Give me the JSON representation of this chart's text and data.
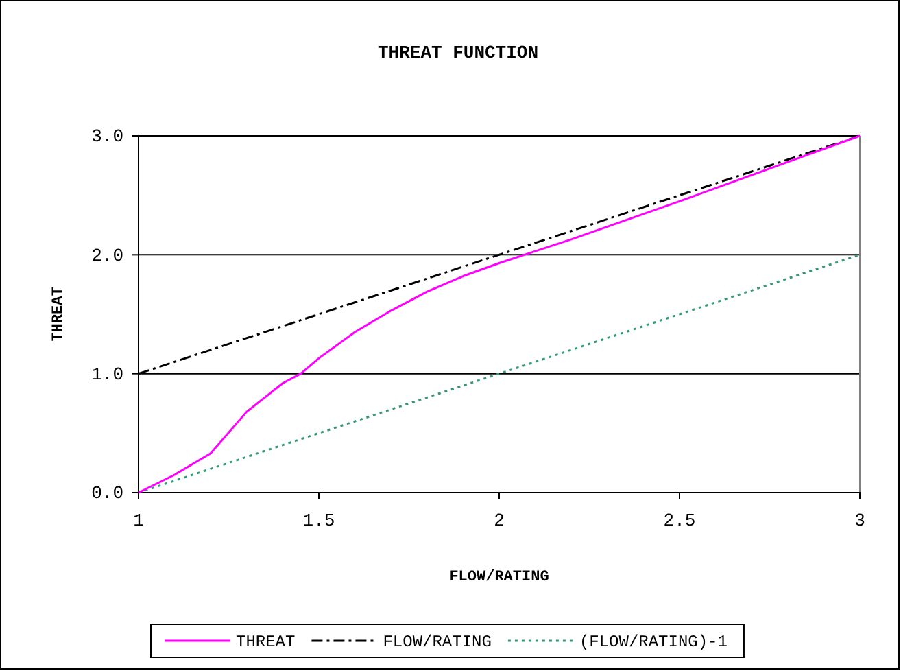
{
  "chart_data": {
    "type": "line",
    "title": "THREAT FUNCTION",
    "xlabel": "FLOW/RATING",
    "ylabel": "THREAT",
    "xlim": [
      1,
      3
    ],
    "xticks": [
      1,
      1.5,
      2,
      2.5,
      3
    ],
    "ylim": [
      0,
      3
    ],
    "yticks": [
      {
        "value": 0,
        "label": "0.0"
      },
      {
        "value": 1,
        "label": "1.0"
      },
      {
        "value": 2,
        "label": "2.0"
      },
      {
        "value": 3,
        "label": "3.0"
      }
    ],
    "grid": "y",
    "legend": "bottom",
    "marker": "none",
    "series": [
      {
        "name": "THREAT",
        "color": "#ff00ff",
        "line_style": "solid",
        "x": [
          1,
          1.1,
          1.2,
          1.3,
          1.4,
          1.45,
          1.5,
          1.6,
          1.7,
          1.8,
          1.9,
          2,
          2.2,
          2.5,
          2.8,
          3
        ],
        "values": [
          0,
          0.15,
          0.33,
          0.68,
          0.92,
          1.0,
          1.13,
          1.35,
          1.53,
          1.69,
          1.82,
          1.93,
          2.13,
          2.45,
          2.78,
          3
        ]
      },
      {
        "name": "FLOW/RATING",
        "color": "#000000",
        "line_style": "dashdot",
        "x": [
          1,
          3
        ],
        "values": [
          1,
          3
        ]
      },
      {
        "name": "(FLOW/RATING)-1",
        "color": "#339977",
        "line_style": "dotted",
        "x": [
          1,
          3
        ],
        "values": [
          0,
          2
        ]
      }
    ]
  }
}
